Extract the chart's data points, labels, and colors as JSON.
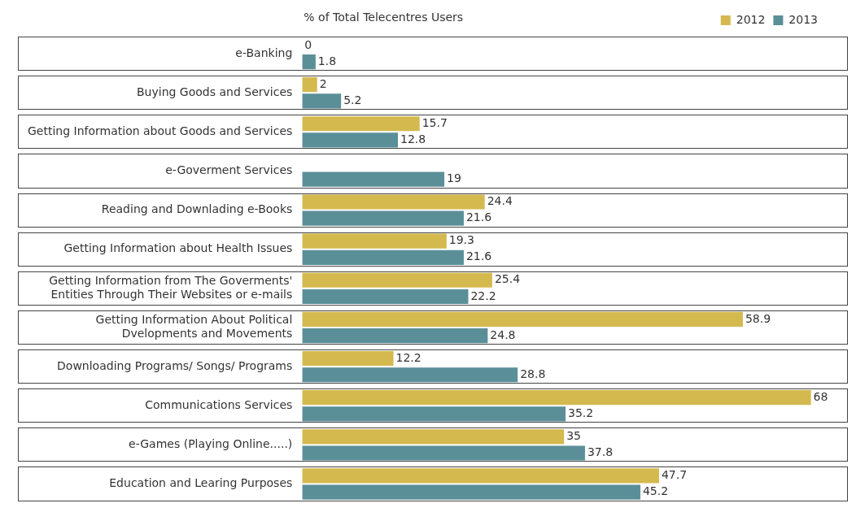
{
  "chart_data": {
    "type": "bar",
    "orientation": "horizontal",
    "title": "% of Total Telecentres Users",
    "categories": [
      "e-Banking",
      "Buying Goods and Services",
      "Getting Information about Goods and Services",
      "e-Goverment Services",
      "Reading and Downlading e-Books",
      "Getting Information about Health Issues",
      "Getting Information from The Goverments' Entities Through Their Websites or e-mails",
      "Getting Information About Political Dvelopments and Movements",
      "Downloading Programs/ Songs/ Programs",
      "Communications Services",
      "e-Games (Playing Online.....)",
      "Education and Learing Purposes"
    ],
    "series": [
      {
        "name": "2012",
        "color": "#d4b94f",
        "values": [
          0,
          2,
          15.7,
          null,
          24.4,
          19.3,
          25.4,
          58.9,
          12.2,
          68,
          35,
          47.7
        ]
      },
      {
        "name": "2013",
        "color": "#5b8f98",
        "values": [
          1.8,
          5.2,
          12.8,
          19,
          21.6,
          21.6,
          22.2,
          24.8,
          28.8,
          35.2,
          37.8,
          45.2
        ]
      }
    ],
    "tick_labels": "y",
    "legend": "top right",
    "data_labels": true
  }
}
